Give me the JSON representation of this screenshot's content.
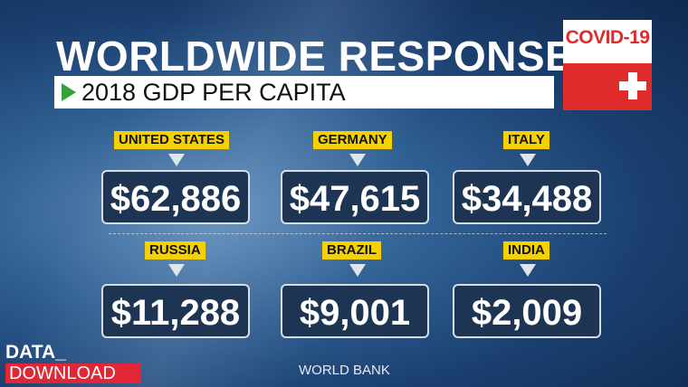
{
  "header": {
    "title": "WORLDWIDE RESPONSE",
    "subtitle": "2018 GDP PER CAPITA"
  },
  "badge": {
    "label": "COVID-19",
    "accent_color": "#e02b2b"
  },
  "countries": [
    {
      "name": "UNITED STATES",
      "value": "$62,886"
    },
    {
      "name": "GERMANY",
      "value": "$47,615"
    },
    {
      "name": "ITALY",
      "value": "$34,488"
    },
    {
      "name": "RUSSIA",
      "value": "$11,288"
    },
    {
      "name": "BRAZIL",
      "value": "$9,001"
    },
    {
      "name": "INDIA",
      "value": "$2,009"
    }
  ],
  "brand": {
    "line1": "DATA_",
    "line2": "DOWNLOAD",
    "accent_color": "#e32636"
  },
  "source": "WORLD BANK",
  "colors": {
    "label_yellow": "#f6d100",
    "arrow_green": "#34a23a",
    "box_navy": "#1d3552"
  }
}
